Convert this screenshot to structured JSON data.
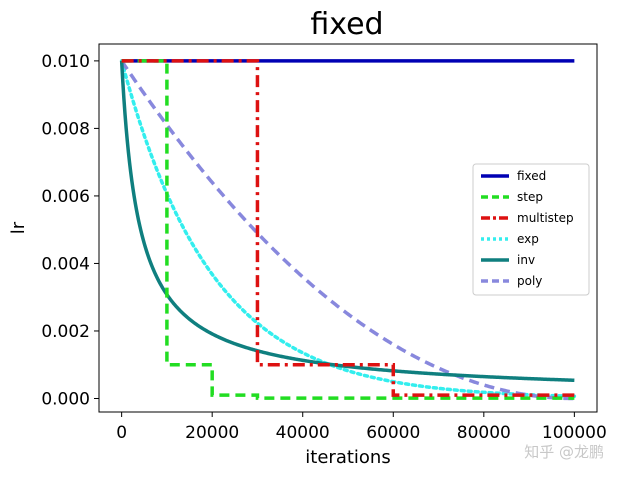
{
  "chart_data": {
    "type": "line",
    "title": "fixed",
    "xlabel": "iterations",
    "ylabel": "lr",
    "xlim": [
      -5000,
      105000
    ],
    "ylim": [
      -0.0004,
      0.0105
    ],
    "xticks": [
      0,
      20000,
      40000,
      60000,
      80000,
      100000
    ],
    "xtick_labels": [
      "0",
      "20000",
      "40000",
      "60000",
      "80000",
      "100000"
    ],
    "yticks": [
      0,
      0.002,
      0.004,
      0.006,
      0.008,
      0.01
    ],
    "ytick_labels": [
      "0.000",
      "0.002",
      "0.004",
      "0.006",
      "0.008",
      "0.010"
    ],
    "grid": false,
    "legend_position": "center-right",
    "base_lr": 0.01,
    "max_iter": 100000,
    "series": [
      {
        "name": "fixed",
        "color": "#0000b4",
        "style": "solid",
        "x": [
          0,
          100000
        ],
        "y": [
          0.01,
          0.01
        ]
      },
      {
        "name": "step",
        "color": "#22dd22",
        "style": "dashed",
        "x": [
          0,
          10000,
          10000,
          20000,
          20000,
          30000,
          30000,
          100000
        ],
        "y": [
          0.01,
          0.01,
          0.001,
          0.001,
          0.0001,
          0.0001,
          1e-05,
          1e-05
        ]
      },
      {
        "name": "multistep",
        "color": "#dd1111",
        "style": "dashdot",
        "x": [
          0,
          30000,
          30000,
          60000,
          60000,
          100000
        ],
        "y": [
          0.01,
          0.01,
          0.001,
          0.001,
          0.0001,
          0.0001
        ]
      },
      {
        "name": "exp",
        "color": "#33eeee",
        "style": "dotted",
        "formula": "base_lr * 0.99995^iter"
      },
      {
        "name": "inv",
        "color": "#0f7f7f",
        "style": "solid",
        "formula": "base_lr * (1 + 0.0001*iter)^-0.75 (approx. gamma)"
      },
      {
        "name": "poly",
        "color": "#8888dd",
        "style": "dashed",
        "formula": "base_lr * (1 - iter/max_iter)^2"
      }
    ]
  },
  "watermark": "知乎 @龙鹏"
}
